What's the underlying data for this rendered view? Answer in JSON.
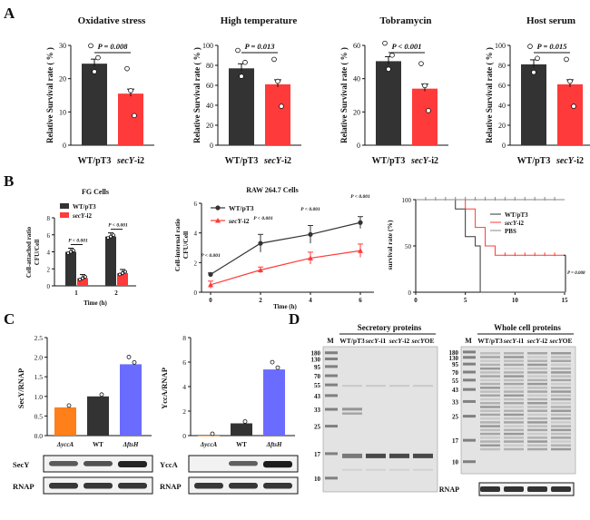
{
  "panels": {
    "A": "A",
    "B": "B",
    "C": "C",
    "D": "D"
  },
  "colors": {
    "wt": "#333333",
    "sec": "#ff3a3a",
    "orange": "#ff7f1a",
    "blue": "#6a6cff",
    "gel": "#e3e3e3"
  },
  "panelA": {
    "ylabel": "Relative Survival rate ( % )",
    "xlabels": [
      "WT/pT3",
      "secY-i2"
    ],
    "charts": [
      {
        "title": "Oxidative stress",
        "pvalue": "P = 0.008",
        "ticks": [
          "0",
          "10",
          "20",
          "30"
        ],
        "ymax": 30
      },
      {
        "title": "High temperature",
        "pvalue": "P = 0.013",
        "ticks": [
          "0",
          "20",
          "40",
          "60",
          "80",
          "100"
        ],
        "ymax": 100
      },
      {
        "title": "Tobramycin",
        "pvalue": "P < 0.001",
        "ticks": [
          "0",
          "20",
          "40",
          "60"
        ],
        "ymax": 60
      },
      {
        "title": "Host serum",
        "pvalue": "P = 0.015",
        "ticks": [
          "0",
          "20",
          "40",
          "60",
          "80",
          "100"
        ],
        "ymax": 100
      }
    ]
  },
  "panelB": {
    "fg": {
      "title": "FG Cells",
      "legend": [
        "WT/pT3",
        "secY-i2"
      ],
      "ylabel1": "Cell-attached ratio",
      "ylabel2": "CFU/Cell",
      "ticks": [
        "0",
        "2",
        "4",
        "6",
        "8"
      ],
      "xticks": [
        "1",
        "2"
      ],
      "xlabel": "Time (h)",
      "pvalues": [
        "P < 0.001",
        "P < 0.001"
      ]
    },
    "raw": {
      "title": "RAW 264.7 Cells",
      "legend": [
        "WT/pT3",
        "secY-i2"
      ],
      "ylabel1": "Cell-internal ratio",
      "ylabel2": "CFU/Cell",
      "ticks": [
        "0",
        "2",
        "4",
        "6"
      ],
      "xticks": [
        "0",
        "2",
        "4",
        "6"
      ],
      "xlabel": "Time (h)",
      "pvalues": [
        "P < 0.001",
        "P < 0.001",
        "P < 0.001",
        "P < 0.001"
      ]
    },
    "surv": {
      "ylabel": "survival rate (%)",
      "ticks": [
        "0",
        "50",
        "100"
      ],
      "xticks": [
        "0",
        "5",
        "10",
        "15"
      ],
      "legend": [
        "WT/pT3",
        "secY-i2",
        "PBS"
      ],
      "pvalue": "P = 0.008"
    }
  },
  "panelC": {
    "secy": {
      "ylabel": "SecY/RNAP",
      "ticks": [
        "0.0",
        "0.5",
        "1.0",
        "1.5",
        "2.0",
        "2.5"
      ],
      "categories": [
        "ΔyccA",
        "WT",
        "ΔftsH"
      ],
      "blots": [
        "SecY",
        "RNAP"
      ]
    },
    "ycca": {
      "ylabel": "YccA/RNAP",
      "ticks": [
        "0",
        "2",
        "4",
        "6",
        "8"
      ],
      "categories": [
        "ΔyccA",
        "WT",
        "ΔftsH"
      ],
      "blots": [
        "YccA",
        "RNAP"
      ]
    }
  },
  "panelD": {
    "sec": {
      "title": "Secretory proteins",
      "lanes": [
        "M",
        "WT/pT3",
        "secY-i1",
        "secY-i2",
        "secYOE"
      ],
      "markers": [
        "180",
        "130",
        "95",
        "70",
        "55",
        "43",
        "33",
        "25",
        "17",
        "10"
      ]
    },
    "whole": {
      "title": "Whole cell proteins",
      "lanes": [
        "M",
        "WT/pT3",
        "secY-i1",
        "secY-i2",
        "secYOE"
      ],
      "markers": [
        "180",
        "130",
        "95",
        "70",
        "55",
        "43",
        "33",
        "25",
        "17",
        "10"
      ],
      "blot": "RNAP"
    }
  },
  "chart_data": [
    {
      "type": "bar",
      "title": "Oxidative stress",
      "categories": [
        "WT/pT3",
        "secY-i2"
      ],
      "values": [
        24.5,
        15.5
      ],
      "ylim": [
        0,
        30
      ],
      "ylabel": "Relative Survival rate ( % )"
    },
    {
      "type": "bar",
      "title": "High temperature",
      "categories": [
        "WT/pT3",
        "secY-i2"
      ],
      "values": [
        77,
        61
      ],
      "ylim": [
        0,
        100
      ],
      "ylabel": "Relative Survival rate ( % )"
    },
    {
      "type": "bar",
      "title": "Tobramycin",
      "categories": [
        "WT/pT3",
        "secY-i2"
      ],
      "values": [
        50.5,
        34
      ],
      "ylim": [
        0,
        60
      ],
      "ylabel": "Relative Survival rate ( % )"
    },
    {
      "type": "bar",
      "title": "Host serum",
      "categories": [
        "WT/pT3",
        "secY-i2"
      ],
      "values": [
        81,
        61
      ],
      "ylim": [
        0,
        100
      ],
      "ylabel": "Relative Survival rate ( % )"
    },
    {
      "type": "bar",
      "title": "FG Cells",
      "categories": [
        "1",
        "2"
      ],
      "series": [
        {
          "name": "WT/pT3",
          "values": [
            4.0,
            5.8
          ]
        },
        {
          "name": "secY-i2",
          "values": [
            0.9,
            1.5
          ]
        }
      ],
      "ylim": [
        0,
        8
      ]
    },
    {
      "type": "line",
      "title": "RAW 264.7 Cells",
      "x": [
        0,
        2,
        4,
        6
      ],
      "series": [
        {
          "name": "WT/pT3",
          "values": [
            1.2,
            3.3,
            3.9,
            4.7
          ]
        },
        {
          "name": "secY-i2",
          "values": [
            0.5,
            1.5,
            2.3,
            2.8
          ]
        }
      ],
      "ylim": [
        0,
        6
      ]
    },
    {
      "type": "line",
      "title": "survival",
      "x": [
        0,
        15
      ],
      "ylim": [
        0,
        100
      ],
      "series": [
        {
          "name": "WT/pT3",
          "steps": [
            [
              0,
              100
            ],
            [
              4,
              90
            ],
            [
              5,
              60
            ],
            [
              6,
              50
            ],
            [
              6.5,
              0
            ],
            [
              15,
              0
            ]
          ]
        },
        {
          "name": "secY-i2",
          "steps": [
            [
              0,
              100
            ],
            [
              5,
              90
            ],
            [
              6,
              70
            ],
            [
              7,
              50
            ],
            [
              8,
              40
            ],
            [
              15,
              40
            ]
          ]
        },
        {
          "name": "PBS",
          "steps": [
            [
              0,
              100
            ],
            [
              15,
              100
            ]
          ]
        }
      ]
    },
    {
      "type": "bar",
      "title": "SecY/RNAP",
      "categories": [
        "ΔyccA",
        "WT",
        "ΔftsH"
      ],
      "values": [
        0.72,
        1.0,
        1.82
      ],
      "ylim": [
        0,
        2.5
      ]
    },
    {
      "type": "bar",
      "title": "YccA/RNAP",
      "categories": [
        "ΔyccA",
        "WT",
        "ΔftsH"
      ],
      "values": [
        0.0,
        1.0,
        5.4
      ],
      "ylim": [
        0,
        8
      ]
    }
  ]
}
